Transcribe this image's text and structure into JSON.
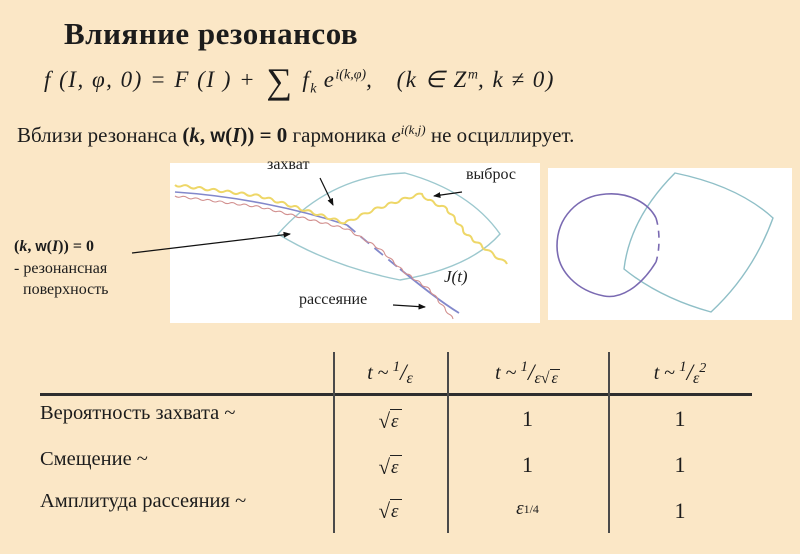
{
  "slide": {
    "title": "Влияние резонансов"
  },
  "formula": {
    "lhs": "f (I, φ, 0) = F (I ) +",
    "sum": "∑",
    "fk_base": "f",
    "fk_sub": "k",
    "e_base": "e",
    "e_sup": "i(k,φ)",
    "comma": ",",
    "cond_pre": "(k ∈ Z",
    "cond_sup": "m",
    "cond_post": ", k ≠ 0)"
  },
  "statement": {
    "pre": "Вблизи резонанса ",
    "res_open": "(",
    "k": "k",
    "sep": ", ",
    "w": "w",
    "p_open": "(",
    "I": "I",
    "res_close": ")) = 0",
    "mid": " гармоника ",
    "e": "e",
    "sup": "i(k,j)",
    "post": " не осциллирует."
  },
  "diagram": {
    "zahvat": "захват",
    "vybros": "выброс",
    "jt": "J(t)",
    "rasseyanie": "рассеяние"
  },
  "caption": {
    "open": "(",
    "k": "k",
    "sep": ", ",
    "w": "w",
    "p": "(",
    "I": "I",
    "close": ")) = 0",
    "line2": "- резонансная",
    "line3": "поверхность"
  },
  "table": {
    "headers": [
      {
        "t": "t",
        "sim": "~",
        "num": "1",
        "slash": "/",
        "den": "ε"
      },
      {
        "t": "t",
        "sim": "~",
        "num": "1",
        "slash": "/",
        "den": "ε",
        "rt": "√",
        "rta": "ε"
      },
      {
        "t": "t",
        "sim": "~",
        "num": "1",
        "slash": "/",
        "den": "ε",
        "sup2": "2"
      }
    ],
    "rows": [
      {
        "label": "Вероятность захвата ~",
        "c1_rt": "√",
        "c1_arg": "ε",
        "c2": "1",
        "c3": "1"
      },
      {
        "label": "Смещение ~",
        "c1_rt": "√",
        "c1_arg": "ε",
        "c2": "1",
        "c3": "1"
      },
      {
        "label": "Амплитуда рассеяния ~",
        "c1_rt": "√",
        "c1_arg": "ε",
        "c2_base": "ε",
        "c2_sup": "1/4",
        "c3": "1"
      }
    ]
  },
  "colors": {
    "bg": "#fbe7c6",
    "ink": "#1c1c1c",
    "diagram-bg": "#ffffff",
    "curve-yellow": "#eed768",
    "curve-blue": "#8288cb",
    "curve-red": "#d2908f",
    "surface-teal": "#9cc8ce",
    "loop-purple": "#7a6ab2",
    "patch-teal": "#8fbfc7"
  }
}
